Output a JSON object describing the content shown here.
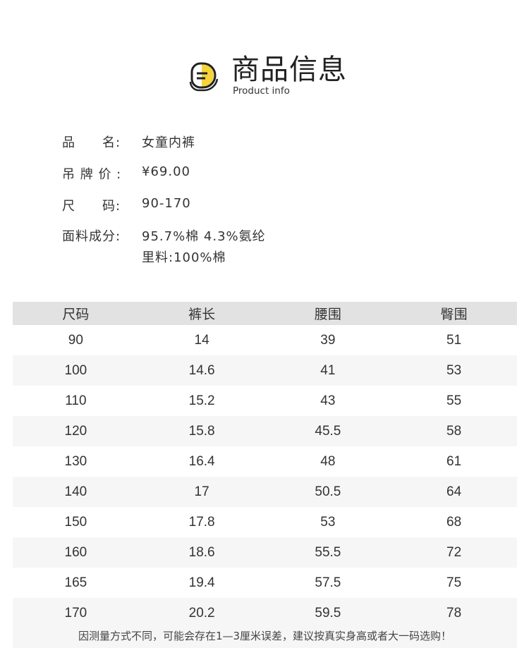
{
  "header": {
    "title": "商品信息",
    "subtitle": "Product info",
    "logo_accent": "#f7d23a"
  },
  "info": [
    {
      "label": "品　　名:",
      "value": "女童内裤"
    },
    {
      "label": "吊 牌 价 :",
      "value": "¥69.00"
    },
    {
      "label": "尺　　码:",
      "value": "90-170"
    },
    {
      "label": "面料成分:",
      "value": "95.7%棉 4.3%氨纶",
      "value2": "里料:100%棉"
    }
  ],
  "table": {
    "headers": [
      "尺码",
      "裤长",
      "腰围",
      "臀围"
    ],
    "rows": [
      [
        "90",
        "14",
        "39",
        "51"
      ],
      [
        "100",
        "14.6",
        "41",
        "53"
      ],
      [
        "110",
        "15.2",
        "43",
        "55"
      ],
      [
        "120",
        "15.8",
        "45.5",
        "58"
      ],
      [
        "130",
        "16.4",
        "48",
        "61"
      ],
      [
        "140",
        "17",
        "50.5",
        "64"
      ],
      [
        "150",
        "17.8",
        "53",
        "68"
      ],
      [
        "160",
        "18.6",
        "55.5",
        "72"
      ],
      [
        "165",
        "19.4",
        "57.5",
        "75"
      ],
      [
        "170",
        "20.2",
        "59.5",
        "78"
      ]
    ]
  },
  "note": "因测量方式不同，可能会存在1—3厘米误差，建议按真实身高或者大一码选购！"
}
